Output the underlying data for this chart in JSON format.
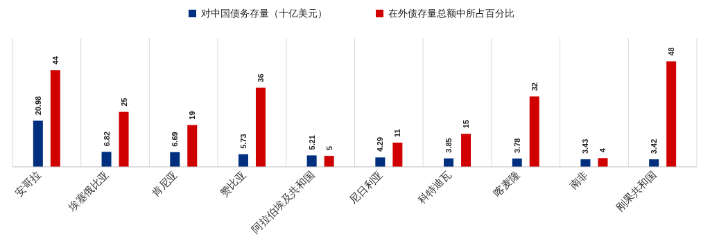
{
  "chart_data": {
    "type": "bar",
    "categories": [
      "安哥拉",
      "埃塞俄比亚",
      "肯尼亚",
      "赞比亚",
      "阿拉伯埃及共和国",
      "尼日利亚",
      "科特迪瓦",
      "喀麦隆",
      "南非",
      "刚果共和国"
    ],
    "series": [
      {
        "name": "对中国债务存量（十亿美元）",
        "color": "#002f7f",
        "values": [
          20.98,
          6.82,
          6.69,
          5.73,
          5.21,
          4.29,
          3.85,
          3.78,
          3.43,
          3.42
        ]
      },
      {
        "name": "在外债存量总额中所占百分比",
        "color": "#d00000",
        "values": [
          44,
          25,
          19,
          36,
          5,
          11,
          15,
          32,
          4,
          48
        ]
      }
    ],
    "data_labels": true,
    "grid": "x",
    "legend": "top"
  }
}
